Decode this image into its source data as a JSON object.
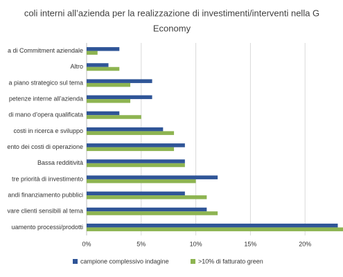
{
  "chart_data": {
    "type": "hbar",
    "title": [
      "coli interni all’azienda per la realizzazione di investimenti/interventi nella G",
      "Economy"
    ],
    "categories": [
      "a di Commitment aziendale",
      "Altro",
      "a piano strategico sul tema",
      "petenze interne all’azienda",
      "di mano d’opera qualificata",
      "costi in ricerca e sviluppo",
      "ento dei costi di operazione",
      "Bassa redditività",
      "tre priorità di investimento",
      "andi finanziamento pubblici",
      "vare clienti sensibili al tema",
      "uamento processi/prodotti"
    ],
    "series": [
      {
        "name": "campione complessivo indagine",
        "color": "#2f5597",
        "values": [
          3,
          2,
          6,
          6,
          3,
          7,
          9,
          9,
          12,
          9,
          11,
          23
        ]
      },
      {
        "name": ">10% di fatturato green",
        "color": "#8db451",
        "values": [
          1,
          3,
          4,
          4,
          5,
          8,
          8,
          9,
          10,
          11,
          12,
          24
        ]
      }
    ],
    "xlim": [
      0,
      25
    ],
    "xticks": [
      {
        "value": 0,
        "label": "0%"
      },
      {
        "value": 5,
        "label": "5%"
      },
      {
        "value": 10,
        "label": "10%"
      },
      {
        "value": 15,
        "label": "15%"
      },
      {
        "value": 20,
        "label": "20%"
      }
    ],
    "grid": true,
    "legend": "bottom"
  }
}
